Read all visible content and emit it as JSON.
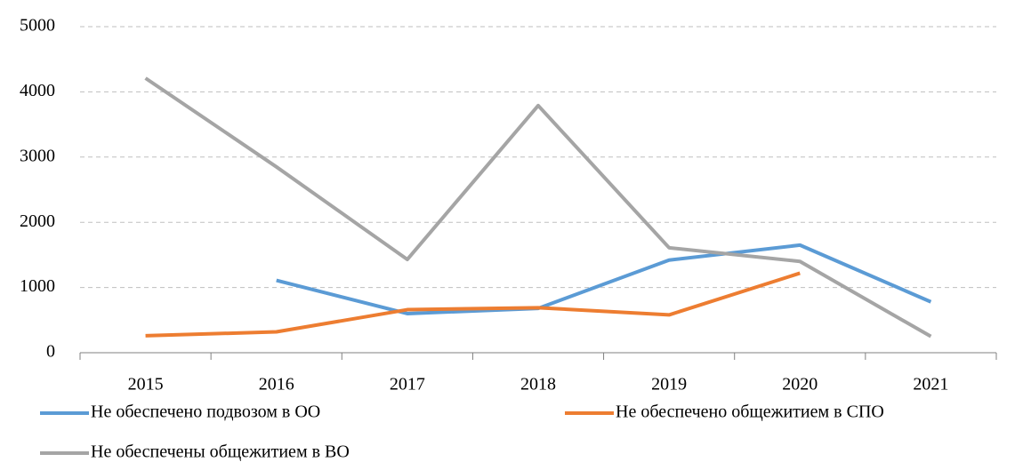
{
  "chart_data": {
    "type": "line",
    "categories": [
      "2015",
      "2016",
      "2017",
      "2018",
      "2019",
      "2020",
      "2021"
    ],
    "series": [
      {
        "name": "Не обеспечено подвозом в ОО",
        "color": "#5b9bd5",
        "values": [
          null,
          1110,
          600,
          680,
          1420,
          1650,
          780
        ]
      },
      {
        "name": "Не обеспечено общежитием в СПО",
        "color": "#ed7d31",
        "values": [
          260,
          320,
          660,
          690,
          580,
          1220,
          null
        ]
      },
      {
        "name": "Не обеспечены общежитием в ВО",
        "color": "#a5a5a5",
        "values": [
          4210,
          2850,
          1430,
          3790,
          1610,
          1400,
          250
        ]
      }
    ],
    "ylim": [
      0,
      5000
    ],
    "yticks": [
      0,
      1000,
      2000,
      3000,
      4000,
      5000
    ],
    "grid": true
  }
}
